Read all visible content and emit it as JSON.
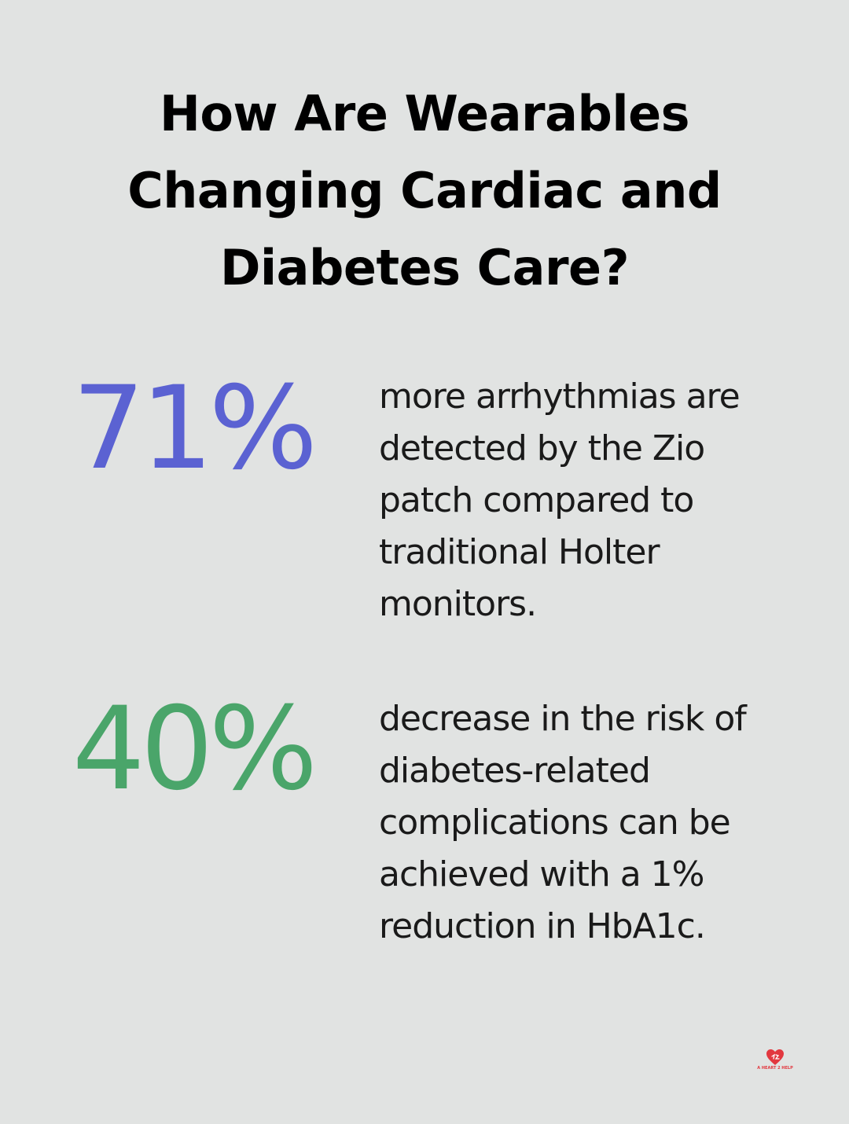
{
  "title": "How Are Wearables Changing Cardiac and Diabetes Care?",
  "stats": [
    {
      "value": "71%",
      "color": "#5b62d2",
      "text": "more arrhythmias are detected by the Zio patch compared to traditional Holter monitors."
    },
    {
      "value": "40%",
      "color": "#4aa56a",
      "text": "decrease in the risk of diabetes-related complications can be achieved with a 1% reduction in HbA1c."
    }
  ],
  "logo": {
    "text": "A HEART 2 HELP",
    "icon": "heart-icon",
    "color": "#e2383f"
  }
}
